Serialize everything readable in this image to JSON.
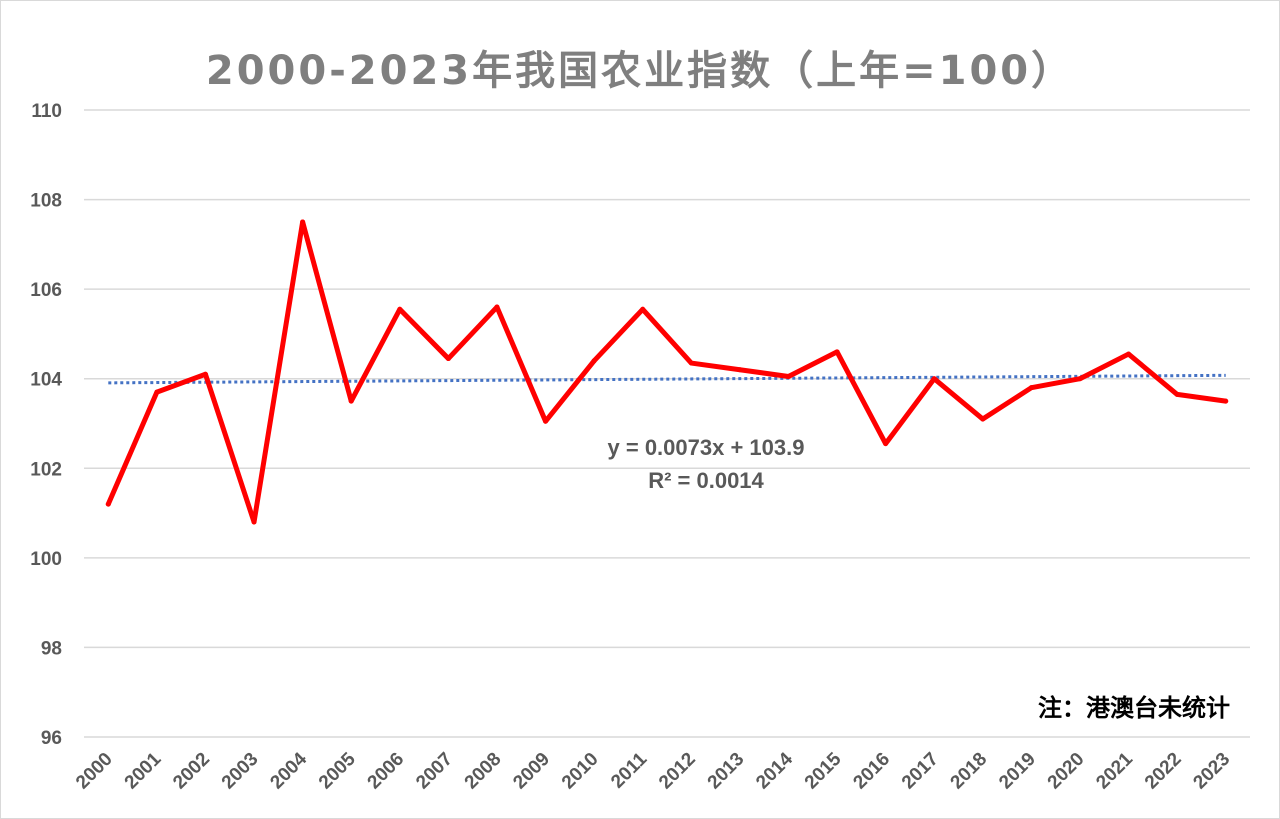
{
  "title": "2000-2023年我国农业指数（上年=100）",
  "note": "注：港澳台未统计",
  "chart_data": {
    "type": "line",
    "title": "2000-2023年我国农业指数（上年=100）",
    "xlabel": "",
    "ylabel": "",
    "categories": [
      "2000",
      "2001",
      "2002",
      "2003",
      "2004",
      "2005",
      "2006",
      "2007",
      "2008",
      "2009",
      "2010",
      "2011",
      "2012",
      "2013",
      "2014",
      "2015",
      "2016",
      "2017",
      "2018",
      "2019",
      "2020",
      "2021",
      "2022",
      "2023"
    ],
    "series": [
      {
        "color": "#ff0000",
        "values": [
          101.2,
          103.7,
          104.1,
          100.8,
          107.5,
          103.5,
          105.55,
          104.45,
          105.6,
          103.05,
          104.4,
          105.55,
          104.35,
          104.2,
          104.05,
          104.6,
          102.55,
          104.0,
          103.1,
          103.8,
          104.0,
          104.55,
          103.65,
          103.5
        ]
      }
    ],
    "trendline": {
      "color": "#4472c4",
      "style": "dotted",
      "equation": "y = 0.0073x + 103.9",
      "r_squared": "R² = 0.0014",
      "slope": 0.0073,
      "intercept": 103.9
    },
    "ylim": [
      96,
      110
    ],
    "yticks": [
      96,
      98,
      100,
      102,
      104,
      106,
      108,
      110
    ],
    "grid": true,
    "legend": "none"
  }
}
